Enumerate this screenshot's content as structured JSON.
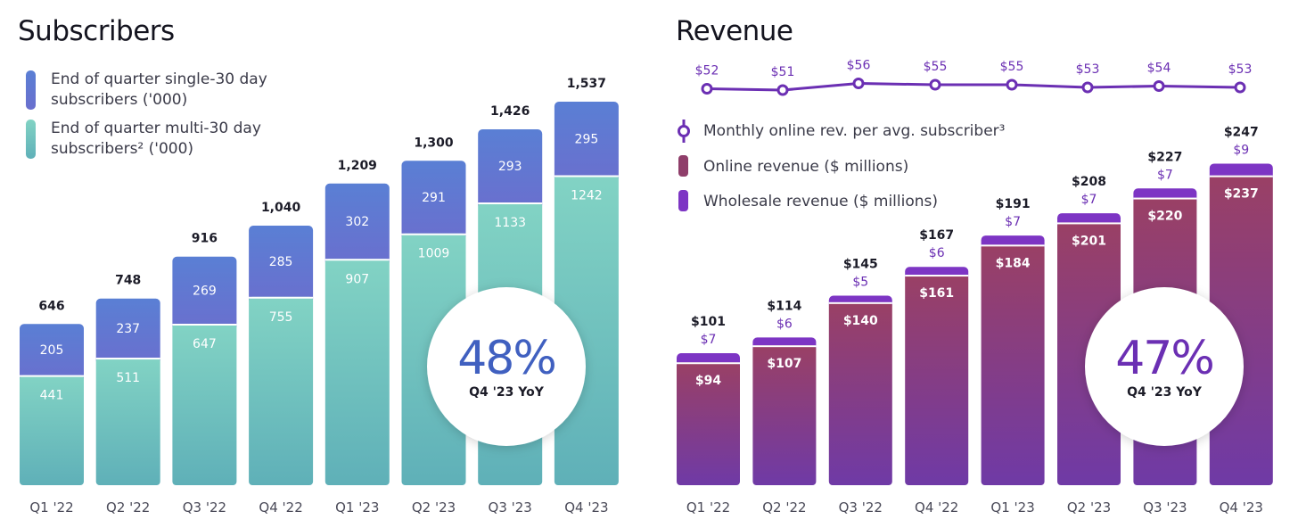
{
  "colors": {
    "single": "#5f77cf",
    "multi": "#74c8bb",
    "online": "#8f3e6a",
    "wholesale": "#7d35c4",
    "line": "#6b2fb3",
    "yoy_subs": "#4060c0",
    "yoy_rev": "#6b2fb3"
  },
  "chart_data": [
    {
      "type": "bar",
      "stacked": true,
      "title": "Subscribers",
      "categories": [
        "Q1 '22",
        "Q2 '22",
        "Q3 '22",
        "Q4 '22",
        "Q1 '23",
        "Q2 '23",
        "Q3 '23",
        "Q4 '23"
      ],
      "series": [
        {
          "name": "End of quarter multi-30 day subscribers² ('000)",
          "values": [
            441,
            511,
            647,
            755,
            907,
            1009,
            1133,
            1242
          ]
        },
        {
          "name": "End of quarter single-30 day subscribers ('000)",
          "values": [
            205,
            237,
            269,
            285,
            302,
            291,
            293,
            295
          ]
        }
      ],
      "totals": [
        "646",
        "748",
        "916",
        "1,040",
        "1,209",
        "1,300",
        "1,426",
        "1,537"
      ],
      "legend": [
        {
          "line1": "End of quarter single-30 day",
          "line2": "subscribers ('000)",
          "icon": "single-swatch-icon"
        },
        {
          "line1": "End of quarter multi-30 day",
          "line2": "subscribers² ('000)",
          "icon": "multi-swatch-icon"
        }
      ],
      "legend_placement": "top-left",
      "annotation": {
        "value": "48%",
        "label": "Q4 '23 YoY"
      },
      "ylim": [
        0,
        1700
      ]
    },
    {
      "type": "bar",
      "stacked": true,
      "title": "Revenue",
      "categories": [
        "Q1 '22",
        "Q2 '22",
        "Q3 '22",
        "Q4 '22",
        "Q1 '23",
        "Q2 '23",
        "Q3 '23",
        "Q4 '23"
      ],
      "series": [
        {
          "name": "Online revenue ($ millions)",
          "values": [
            94,
            107,
            140,
            161,
            184,
            201,
            220,
            237
          ]
        },
        {
          "name": "Wholesale revenue ($ millions)",
          "values": [
            7,
            6,
            5,
            6,
            7,
            7,
            7,
            9
          ]
        }
      ],
      "line_series": {
        "name": "Monthly online rev. per avg. subscriber³",
        "values": [
          52,
          51,
          56,
          55,
          55,
          53,
          54,
          53
        ]
      },
      "totals": [
        "$101",
        "$114",
        "$145",
        "$167",
        "$191",
        "$208",
        "$227",
        "$247"
      ],
      "online_labels": [
        "$94",
        "$107",
        "$140",
        "$161",
        "$184",
        "$201",
        "$220",
        "$237"
      ],
      "wholesale_labels": [
        "$7",
        "$6",
        "$5",
        "$6",
        "$7",
        "$7",
        "$7",
        "$9"
      ],
      "line_labels": [
        "$52",
        "$51",
        "$56",
        "$55",
        "$55",
        "$53",
        "$54",
        "$53"
      ],
      "legend": [
        {
          "text": "Monthly online rev. per avg. subscriber³",
          "icon": "line-marker-icon"
        },
        {
          "text": "Online revenue ($ millions)",
          "icon": "online-swatch-icon"
        },
        {
          "text": "Wholesale revenue ($ millions)",
          "icon": "wholesale-swatch-icon"
        }
      ],
      "legend_placement": "top-left",
      "annotation": {
        "value": "47%",
        "label": "Q4 '23 YoY"
      },
      "ylim": [
        0,
        275
      ]
    }
  ]
}
